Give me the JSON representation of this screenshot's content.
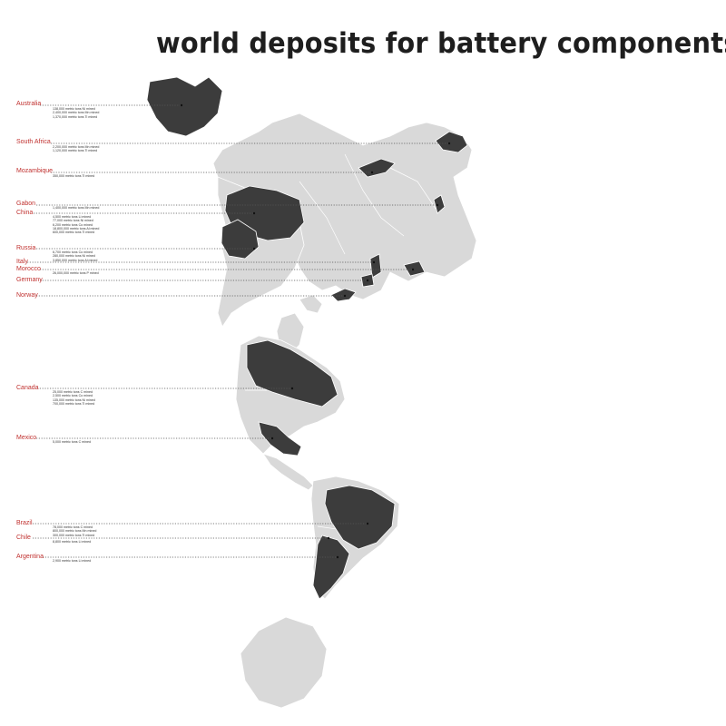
{
  "title": "world deposits for battery components",
  "colors": {
    "land": "#d9d9d9",
    "deposit": "#3c3c3c",
    "label": "#c0312f",
    "leader": "#555555"
  },
  "countries": [
    {
      "id": "australia",
      "name": "Australia",
      "stats": [
        "138,000 metric tons Ni mined",
        "2,400,000 metric tons Mn mined",
        "1,370,000 metric tons Ti mined"
      ]
    },
    {
      "id": "south-africa",
      "name": "South Africa",
      "stats": [
        "2,200,000 metric tons Mn mined",
        "1,120,000 metric tons Ti mined"
      ]
    },
    {
      "id": "mozambique",
      "name": "Mozambique",
      "stats": [
        "350,000 metric tons Ti mined"
      ]
    },
    {
      "id": "gabon",
      "name": "Gabon",
      "stats": [
        "1,400,000 metric tons Mn mined"
      ]
    },
    {
      "id": "china",
      "name": "China",
      "stats": [
        "4,500 metric tons Li mined",
        "77,000 metric tons Ni mined",
        "6,200 metric tons Co mined",
        "18,800,000 metric tons Al mined",
        "600,000 metric tons Ti mined"
      ]
    },
    {
      "id": "russia",
      "name": "Russia",
      "stats": [
        "6,700 metric tons Co mined",
        "280,000 metric tons Ni mined",
        "3,850,000 metric tons Al mined"
      ]
    },
    {
      "id": "italy",
      "name": "Italy",
      "stats": []
    },
    {
      "id": "morocco",
      "name": "Morocco",
      "stats": [
        "26,000,000 metric tons P mined"
      ]
    },
    {
      "id": "germany",
      "name": "Germany",
      "stats": []
    },
    {
      "id": "norway",
      "name": "Norway",
      "stats": []
    },
    {
      "id": "canada",
      "name": "Canada",
      "stats": [
        "25,000 metric tons C mined",
        "2,500 metric tons Co mined",
        "135,000 metric tons Ni mined",
        "700,000 metric tons Ti mined"
      ]
    },
    {
      "id": "mexico",
      "name": "Mexico",
      "stats": [
        "5,000 metric tons C mined"
      ]
    },
    {
      "id": "brazil",
      "name": "Brazil",
      "stats": [
        "78,000 metric tons C mined",
        "800,000 metric tons Mn mined",
        "300,000 metric tons Ti mined"
      ]
    },
    {
      "id": "chile",
      "name": "Chile",
      "stats": [
        "8,800 metric tons Li mined"
      ]
    },
    {
      "id": "argentina",
      "name": "Argentina",
      "stats": [
        "2,900 metric tons Li mined"
      ]
    }
  ]
}
